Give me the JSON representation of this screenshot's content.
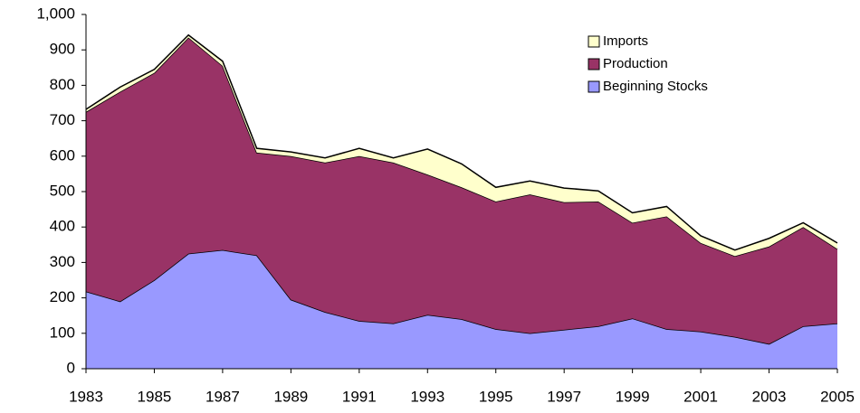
{
  "chart_data": {
    "type": "stacked-area",
    "x": [
      1983,
      1984,
      1985,
      1986,
      1987,
      1988,
      1989,
      1990,
      1991,
      1992,
      1993,
      1994,
      1995,
      1996,
      1997,
      1998,
      1999,
      2000,
      2001,
      2002,
      2003,
      2004,
      2005
    ],
    "xlim": [
      1983,
      2005
    ],
    "xticks": [
      1983,
      1985,
      1987,
      1989,
      1991,
      1993,
      1995,
      1997,
      1999,
      2001,
      2003,
      2005
    ],
    "ylim": [
      0,
      1000
    ],
    "yticks": [
      0,
      100,
      200,
      300,
      400,
      500,
      600,
      700,
      800,
      900,
      {
        "value": 1000,
        "label": "1,000"
      }
    ],
    "grid": false,
    "legend": "upper right",
    "series": [
      {
        "name": "Beginning Stocks",
        "color": "#9999ff",
        "values": [
          218,
          190,
          250,
          325,
          335,
          320,
          195,
          160,
          135,
          128,
          152,
          140,
          112,
          100,
          110,
          120,
          142,
          112,
          105,
          90,
          70,
          120,
          128
        ]
      },
      {
        "name": "Production",
        "color": "#993366",
        "values": [
          507,
          592,
          585,
          610,
          520,
          290,
          405,
          422,
          465,
          454,
          396,
          372,
          360,
          392,
          360,
          352,
          270,
          318,
          250,
          228,
          275,
          280,
          210
        ]
      },
      {
        "name": "Imports",
        "color": "#ffffcc",
        "values": [
          7,
          13,
          10,
          7,
          13,
          12,
          12,
          13,
          22,
          13,
          72,
          66,
          40,
          38,
          40,
          30,
          28,
          28,
          20,
          17,
          23,
          12,
          17
        ]
      }
    ]
  }
}
